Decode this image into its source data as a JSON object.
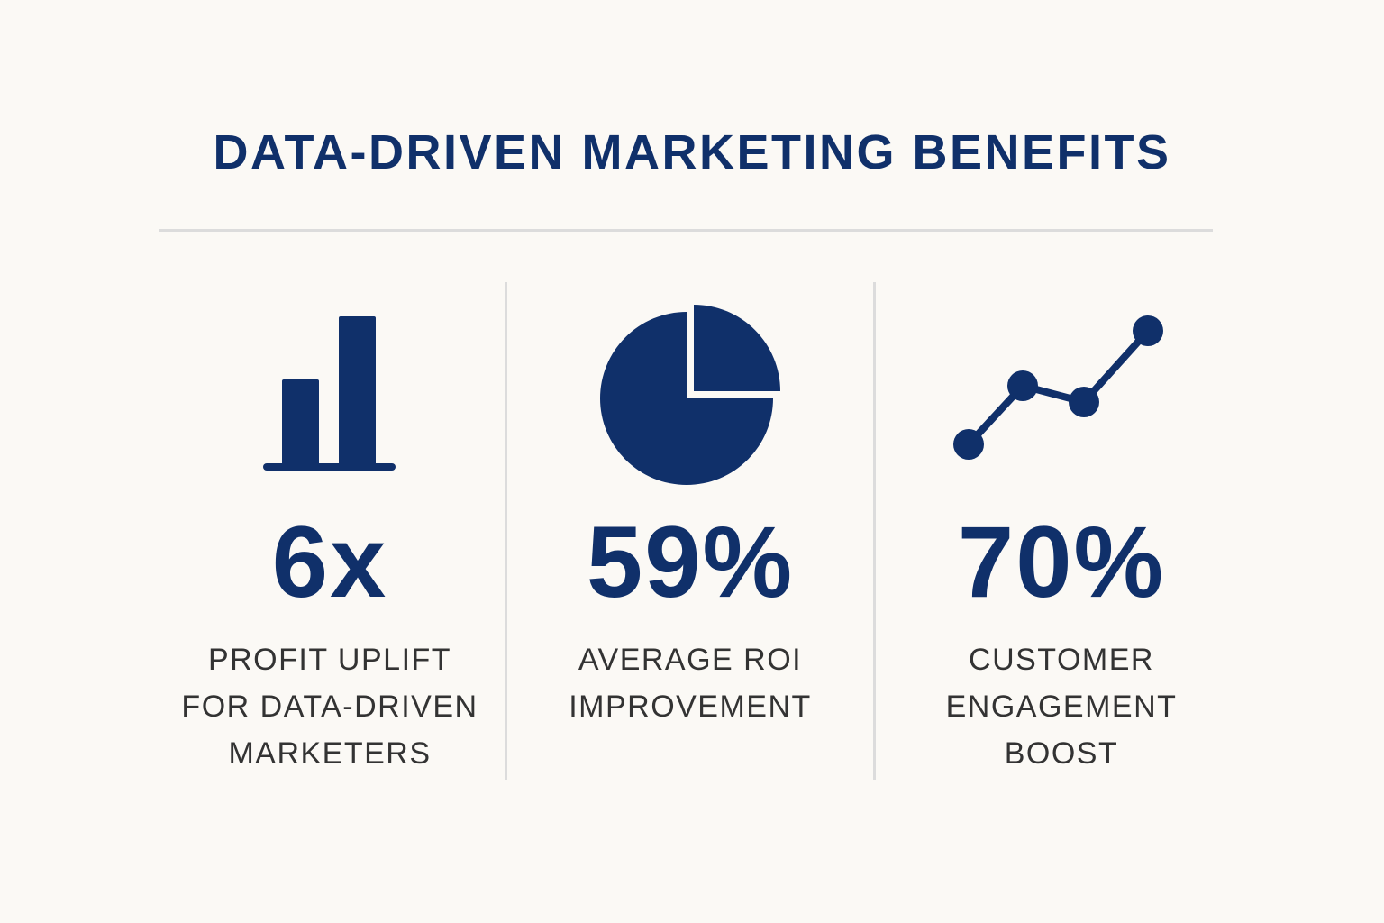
{
  "title": "DATA-DRIVEN MARKETING BENEFITS",
  "stats": [
    {
      "value": "6x",
      "label": [
        "PROFIT UPLIFT",
        "FOR DATA-DRIVEN",
        "MARKETERS"
      ]
    },
    {
      "value": "59%",
      "label": [
        "AVERAGE ROI",
        "IMPROVEMENT"
      ]
    },
    {
      "value": "70%",
      "label": [
        "CUSTOMER",
        "ENGAGEMENT",
        "BOOST"
      ]
    }
  ]
}
